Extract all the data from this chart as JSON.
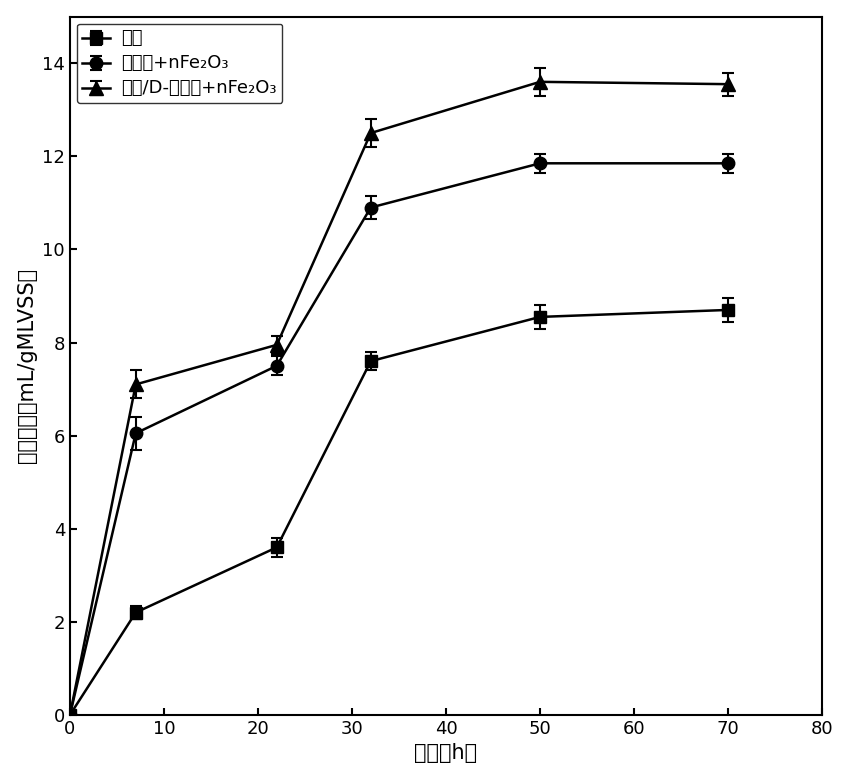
{
  "series": [
    {
      "label": "空白",
      "marker": "s",
      "x": [
        0,
        7,
        22,
        32,
        50,
        70
      ],
      "y": [
        0,
        2.2,
        3.6,
        7.6,
        8.55,
        8.7
      ],
      "yerr": [
        0,
        0.15,
        0.2,
        0.2,
        0.25,
        0.25
      ]
    },
    {
      "label": "未解离+nFe₂O₃",
      "marker": "o",
      "x": [
        0,
        7,
        22,
        32,
        50,
        70
      ],
      "y": [
        0,
        6.05,
        7.5,
        10.9,
        11.85,
        11.85
      ],
      "yerr": [
        0,
        0.35,
        0.2,
        0.25,
        0.2,
        0.2
      ]
    },
    {
      "label": "双胺/D-酪氨酸+nFe₂O₃",
      "marker": "^",
      "x": [
        0,
        7,
        22,
        32,
        50,
        70
      ],
      "y": [
        0,
        7.1,
        7.95,
        12.5,
        13.6,
        13.55
      ],
      "yerr": [
        0,
        0.3,
        0.2,
        0.3,
        0.3,
        0.25
      ]
    }
  ],
  "xlabel": "时间（h）",
  "ylabel": "产甲烷量（mL/gMLVSS）",
  "xlim": [
    0,
    80
  ],
  "ylim": [
    0,
    15
  ],
  "xticks": [
    0,
    10,
    20,
    30,
    40,
    50,
    60,
    70,
    80
  ],
  "yticks": [
    0,
    2,
    4,
    6,
    8,
    10,
    12,
    14
  ],
  "color": "#000000",
  "linewidth": 1.8,
  "capsize": 4,
  "figure_width": 8.5,
  "figure_height": 7.8
}
